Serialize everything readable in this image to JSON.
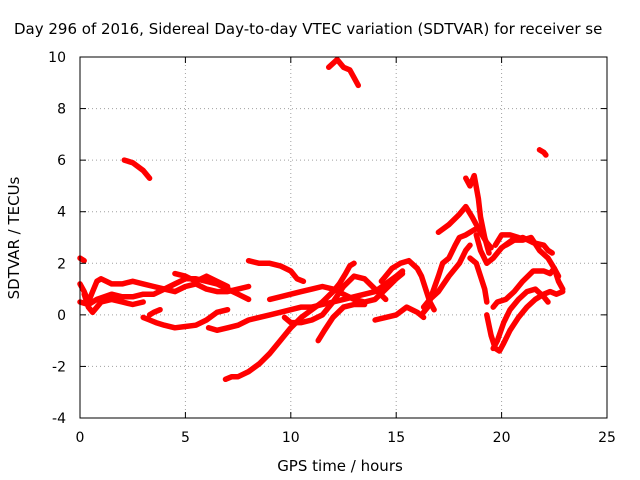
{
  "chart_data": {
    "type": "scatter",
    "title": "Day 296 of 2016, Sidereal Day-to-day VTEC variation (SDTVAR) for receiver se",
    "xlabel": "GPS time / hours",
    "ylabel": "SDTVAR / TECUs",
    "xlim": [
      0,
      25
    ],
    "ylim": [
      -4,
      10
    ],
    "xticks": [
      "0",
      "5",
      "10",
      "15",
      "20",
      "25"
    ],
    "yticks": [
      "-4",
      "-2",
      "0",
      "2",
      "4",
      "6",
      "8",
      "10"
    ],
    "grid": true,
    "marker": "+",
    "color": "#ff0000",
    "series": [
      {
        "name": "t1",
        "points": [
          [
            0.0,
            2.2
          ],
          [
            0.2,
            2.1
          ]
        ]
      },
      {
        "name": "t2",
        "points": [
          [
            0.0,
            1.2
          ],
          [
            0.2,
            0.9
          ],
          [
            0.4,
            0.5
          ],
          [
            0.6,
            0.9
          ],
          [
            0.8,
            1.3
          ],
          [
            1.0,
            1.4
          ],
          [
            1.5,
            1.2
          ],
          [
            2.0,
            1.2
          ],
          [
            2.5,
            1.3
          ],
          [
            3.0,
            1.2
          ],
          [
            3.5,
            1.1
          ],
          [
            4.0,
            1.0
          ],
          [
            4.5,
            0.9
          ],
          [
            5.0,
            1.1
          ],
          [
            5.5,
            1.2
          ],
          [
            6.0,
            1.0
          ],
          [
            6.5,
            0.9
          ],
          [
            7.0,
            0.9
          ],
          [
            7.5,
            1.0
          ],
          [
            8.0,
            1.1
          ]
        ]
      },
      {
        "name": "t3",
        "points": [
          [
            0.0,
            0.5
          ],
          [
            0.4,
            0.4
          ],
          [
            0.8,
            0.6
          ],
          [
            1.5,
            0.8
          ],
          [
            2.0,
            0.7
          ],
          [
            2.5,
            0.7
          ],
          [
            3.0,
            0.8
          ],
          [
            3.5,
            0.8
          ],
          [
            4.0,
            1.0
          ],
          [
            4.5,
            1.2
          ],
          [
            5.0,
            1.4
          ],
          [
            5.5,
            1.4
          ],
          [
            6.0,
            1.3
          ],
          [
            6.5,
            1.2
          ],
          [
            7.0,
            1.0
          ],
          [
            7.5,
            0.8
          ],
          [
            8.0,
            0.6
          ]
        ]
      },
      {
        "name": "t4",
        "points": [
          [
            0.2,
            0.8
          ],
          [
            0.4,
            0.3
          ],
          [
            0.6,
            0.1
          ],
          [
            0.8,
            0.3
          ],
          [
            1.0,
            0.5
          ],
          [
            1.5,
            0.6
          ],
          [
            2.0,
            0.5
          ],
          [
            2.5,
            0.4
          ],
          [
            3.0,
            0.5
          ]
        ]
      },
      {
        "name": "t5",
        "points": [
          [
            2.1,
            6.0
          ],
          [
            2.5,
            5.9
          ],
          [
            3.0,
            5.6
          ],
          [
            3.3,
            5.3
          ]
        ]
      },
      {
        "name": "t6",
        "points": [
          [
            3.0,
            -0.1
          ],
          [
            3.3,
            -0.2
          ],
          [
            3.6,
            -0.3
          ],
          [
            4.0,
            -0.4
          ],
          [
            4.5,
            -0.5
          ],
          [
            5.0,
            -0.45
          ],
          [
            5.5,
            -0.4
          ],
          [
            6.0,
            -0.2
          ],
          [
            6.5,
            0.1
          ],
          [
            7.0,
            0.2
          ]
        ]
      },
      {
        "name": "t7",
        "points": [
          [
            3.3,
            0.0
          ],
          [
            3.5,
            0.1
          ],
          [
            3.8,
            0.2
          ]
        ]
      },
      {
        "name": "t8",
        "points": [
          [
            4.5,
            1.6
          ],
          [
            5.0,
            1.5
          ],
          [
            5.5,
            1.3
          ],
          [
            6.0,
            1.5
          ],
          [
            6.5,
            1.3
          ],
          [
            7.0,
            1.1
          ]
        ]
      },
      {
        "name": "t9",
        "points": [
          [
            6.1,
            -0.5
          ],
          [
            6.5,
            -0.6
          ],
          [
            7.0,
            -0.5
          ],
          [
            7.5,
            -0.4
          ],
          [
            8.0,
            -0.2
          ],
          [
            8.5,
            -0.1
          ],
          [
            9.0,
            0.0
          ],
          [
            9.5,
            0.1
          ],
          [
            10.0,
            0.2
          ],
          [
            10.5,
            0.3
          ],
          [
            11.0,
            0.3
          ],
          [
            11.5,
            0.4
          ],
          [
            12.0,
            0.5
          ],
          [
            12.5,
            0.6
          ],
          [
            13.0,
            0.7
          ],
          [
            13.5,
            0.8
          ],
          [
            14.0,
            0.9
          ],
          [
            14.5,
            1.2
          ],
          [
            15.0,
            1.5
          ],
          [
            15.3,
            1.7
          ]
        ]
      },
      {
        "name": "t10",
        "points": [
          [
            6.9,
            -2.5
          ],
          [
            7.2,
            -2.4
          ],
          [
            7.5,
            -2.4
          ],
          [
            8.0,
            -2.2
          ],
          [
            8.5,
            -1.9
          ],
          [
            9.0,
            -1.5
          ],
          [
            9.5,
            -1.0
          ],
          [
            10.0,
            -0.5
          ],
          [
            10.5,
            -0.1
          ],
          [
            11.0,
            0.2
          ],
          [
            11.5,
            0.5
          ],
          [
            12.0,
            0.9
          ],
          [
            12.3,
            1.2
          ],
          [
            12.6,
            1.6
          ],
          [
            12.8,
            1.9
          ],
          [
            13.0,
            2.0
          ]
        ]
      },
      {
        "name": "t11",
        "points": [
          [
            8.0,
            2.1
          ],
          [
            8.5,
            2.0
          ],
          [
            9.0,
            2.0
          ],
          [
            9.5,
            1.9
          ],
          [
            10.0,
            1.7
          ],
          [
            10.3,
            1.4
          ],
          [
            10.6,
            1.3
          ]
        ]
      },
      {
        "name": "t12",
        "points": [
          [
            9.0,
            0.6
          ],
          [
            9.5,
            0.7
          ],
          [
            10.0,
            0.8
          ],
          [
            10.5,
            0.9
          ],
          [
            11.0,
            1.0
          ],
          [
            11.5,
            1.1
          ],
          [
            12.0,
            1.0
          ],
          [
            12.5,
            0.8
          ],
          [
            13.0,
            0.6
          ],
          [
            13.5,
            0.5
          ],
          [
            14.0,
            0.6
          ],
          [
            14.5,
            1.0
          ],
          [
            15.0,
            1.4
          ],
          [
            15.3,
            1.6
          ]
        ]
      },
      {
        "name": "t13",
        "points": [
          [
            9.7,
            -0.1
          ],
          [
            10.0,
            -0.3
          ],
          [
            10.5,
            -0.3
          ],
          [
            11.0,
            -0.2
          ],
          [
            11.5,
            0.0
          ],
          [
            12.0,
            0.5
          ],
          [
            12.5,
            1.1
          ],
          [
            13.0,
            1.5
          ],
          [
            13.5,
            1.4
          ],
          [
            14.0,
            1.0
          ],
          [
            14.5,
            0.6
          ]
        ]
      },
      {
        "name": "t14",
        "points": [
          [
            11.3,
            -1.0
          ],
          [
            11.6,
            -0.6
          ],
          [
            12.0,
            -0.1
          ],
          [
            12.5,
            0.3
          ],
          [
            13.0,
            0.4
          ],
          [
            13.5,
            0.4
          ]
        ]
      },
      {
        "name": "t15",
        "points": [
          [
            11.8,
            9.6
          ],
          [
            12.2,
            9.9
          ],
          [
            12.5,
            9.6
          ],
          [
            12.8,
            9.5
          ],
          [
            13.0,
            9.2
          ],
          [
            13.2,
            8.9
          ]
        ]
      },
      {
        "name": "t16",
        "points": [
          [
            14.3,
            1.3
          ],
          [
            14.8,
            1.8
          ],
          [
            15.2,
            2.0
          ],
          [
            15.6,
            2.1
          ],
          [
            16.0,
            1.8
          ],
          [
            16.2,
            1.5
          ],
          [
            16.4,
            1.0
          ],
          [
            16.6,
            0.5
          ],
          [
            16.8,
            0.2
          ]
        ]
      },
      {
        "name": "t17",
        "points": [
          [
            14.0,
            -0.2
          ],
          [
            14.5,
            -0.1
          ],
          [
            15.0,
            0.0
          ],
          [
            15.5,
            0.3
          ],
          [
            16.0,
            0.1
          ],
          [
            16.3,
            -0.1
          ]
        ]
      },
      {
        "name": "t18",
        "points": [
          [
            16.2,
            0.0
          ],
          [
            16.5,
            0.3
          ],
          [
            16.7,
            0.8
          ],
          [
            17.0,
            1.5
          ],
          [
            17.2,
            2.0
          ],
          [
            17.5,
            2.2
          ],
          [
            17.8,
            2.7
          ],
          [
            18.0,
            3.0
          ],
          [
            18.3,
            3.1
          ],
          [
            18.7,
            3.3
          ],
          [
            19.0,
            3.4
          ]
        ]
      },
      {
        "name": "t19",
        "points": [
          [
            16.3,
            0.3
          ],
          [
            16.6,
            0.6
          ],
          [
            17.0,
            0.9
          ],
          [
            17.5,
            1.5
          ],
          [
            18.0,
            2.0
          ],
          [
            18.3,
            2.5
          ],
          [
            18.5,
            2.7
          ]
        ]
      },
      {
        "name": "t20",
        "points": [
          [
            17.0,
            3.2
          ],
          [
            17.5,
            3.5
          ],
          [
            18.0,
            3.9
          ],
          [
            18.3,
            4.2
          ],
          [
            18.6,
            3.8
          ],
          [
            19.0,
            3.2
          ],
          [
            19.3,
            2.8
          ],
          [
            19.5,
            2.6
          ]
        ]
      },
      {
        "name": "t21",
        "points": [
          [
            18.3,
            5.3
          ],
          [
            18.5,
            5.0
          ],
          [
            18.7,
            5.4
          ],
          [
            18.9,
            4.5
          ],
          [
            19.0,
            3.8
          ],
          [
            19.2,
            3.0
          ],
          [
            19.4,
            2.4
          ]
        ]
      },
      {
        "name": "t22",
        "points": [
          [
            18.5,
            2.2
          ],
          [
            18.8,
            2.0
          ],
          [
            19.0,
            1.5
          ],
          [
            19.2,
            1.0
          ],
          [
            19.3,
            0.5
          ]
        ]
      },
      {
        "name": "t23",
        "points": [
          [
            18.8,
            3.1
          ],
          [
            19.0,
            2.5
          ],
          [
            19.3,
            2.0
          ],
          [
            19.6,
            2.2
          ],
          [
            20.0,
            2.6
          ],
          [
            20.5,
            2.9
          ],
          [
            21.0,
            3.0
          ],
          [
            21.5,
            2.8
          ],
          [
            22.0,
            2.7
          ],
          [
            22.2,
            2.5
          ],
          [
            22.4,
            2.4
          ]
        ]
      },
      {
        "name": "t24",
        "points": [
          [
            19.3,
            0.0
          ],
          [
            19.5,
            -0.8
          ],
          [
            19.7,
            -1.3
          ],
          [
            19.9,
            -1.4
          ],
          [
            20.1,
            -1.1
          ],
          [
            20.4,
            -0.6
          ],
          [
            20.8,
            -0.1
          ],
          [
            21.2,
            0.3
          ],
          [
            21.6,
            0.6
          ],
          [
            22.0,
            0.8
          ],
          [
            22.3,
            0.9
          ],
          [
            22.6,
            0.8
          ],
          [
            22.9,
            0.9
          ]
        ]
      },
      {
        "name": "t25",
        "points": [
          [
            19.6,
            -1.3
          ],
          [
            19.8,
            -1.0
          ],
          [
            20.1,
            -0.3
          ],
          [
            20.4,
            0.2
          ],
          [
            20.8,
            0.6
          ],
          [
            21.2,
            0.9
          ],
          [
            21.6,
            1.0
          ],
          [
            22.0,
            0.7
          ],
          [
            22.2,
            0.5
          ]
        ]
      },
      {
        "name": "t26",
        "points": [
          [
            19.6,
            0.3
          ],
          [
            19.8,
            0.5
          ],
          [
            20.2,
            0.6
          ],
          [
            20.6,
            0.9
          ],
          [
            21.0,
            1.3
          ],
          [
            21.5,
            1.7
          ],
          [
            22.0,
            1.7
          ],
          [
            22.3,
            1.6
          ],
          [
            22.5,
            1.8
          ],
          [
            22.7,
            1.3
          ],
          [
            22.9,
            1.0
          ]
        ]
      },
      {
        "name": "t27",
        "points": [
          [
            19.7,
            2.7
          ],
          [
            20.0,
            3.1
          ],
          [
            20.4,
            3.1
          ],
          [
            20.8,
            3.0
          ]
        ]
      },
      {
        "name": "t28",
        "points": [
          [
            21.8,
            6.4
          ],
          [
            22.0,
            6.3
          ],
          [
            22.1,
            6.2
          ]
        ]
      },
      {
        "name": "t29",
        "points": [
          [
            20.2,
            2.7
          ],
          [
            20.6,
            2.9
          ],
          [
            21.0,
            2.9
          ],
          [
            21.4,
            3.0
          ],
          [
            21.8,
            2.5
          ],
          [
            22.2,
            2.2
          ],
          [
            22.5,
            1.8
          ],
          [
            22.7,
            1.5
          ]
        ]
      }
    ]
  }
}
